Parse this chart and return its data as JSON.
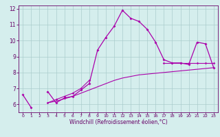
{
  "x": [
    0,
    1,
    2,
    3,
    4,
    5,
    6,
    7,
    8,
    9,
    10,
    11,
    12,
    13,
    14,
    15,
    16,
    17,
    18,
    19,
    20,
    21,
    22,
    23
  ],
  "line1": [
    6.6,
    5.8,
    null,
    6.8,
    6.1,
    6.4,
    6.5,
    6.9,
    7.3,
    9.4,
    10.2,
    10.9,
    11.9,
    11.4,
    11.2,
    10.7,
    9.9,
    8.8,
    8.6,
    8.6,
    8.5,
    9.9,
    9.8,
    8.3
  ],
  "line2": [
    null,
    null,
    null,
    6.1,
    6.3,
    6.5,
    6.7,
    7.0,
    7.5,
    null,
    null,
    null,
    null,
    null,
    null,
    null,
    null,
    8.6,
    8.6,
    8.6,
    8.6,
    8.6,
    8.6,
    8.6
  ],
  "line3": [
    6.5,
    null,
    null,
    6.1,
    6.2,
    6.35,
    6.5,
    6.7,
    6.9,
    7.1,
    7.3,
    7.5,
    7.65,
    7.75,
    7.85,
    7.9,
    7.95,
    8.0,
    8.05,
    8.1,
    8.15,
    8.2,
    8.25,
    8.3
  ],
  "bg_color": "#d5eeed",
  "grid_color": "#aacccc",
  "line_color": "#aa00aa",
  "xlabel": "Windchill (Refroidissement éolien,°C)",
  "ylim": [
    5.5,
    12.2
  ],
  "xlim": [
    -0.5,
    23.5
  ],
  "yticks": [
    6,
    7,
    8,
    9,
    10,
    11,
    12
  ],
  "xticks": [
    0,
    1,
    2,
    3,
    4,
    5,
    6,
    7,
    8,
    9,
    10,
    11,
    12,
    13,
    14,
    15,
    16,
    17,
    18,
    19,
    20,
    21,
    22,
    23
  ]
}
